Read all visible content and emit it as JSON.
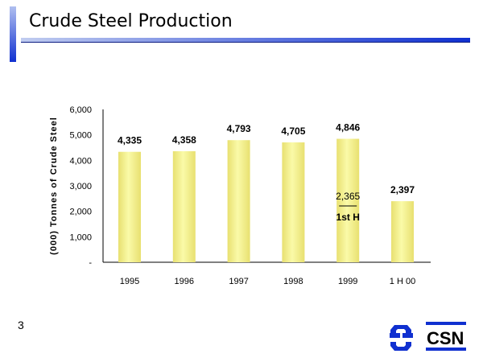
{
  "title": "Crude Steel Production",
  "page_number": "3",
  "logo_text": "CSN",
  "colors": {
    "bar": "#f0f08a",
    "accent": "#1030d0"
  },
  "chart_data": {
    "type": "bar",
    "title": "Crude Steel Production",
    "xlabel": "",
    "ylabel": "(000) Tonnes of Crude Steel",
    "ylim": [
      0,
      6000
    ],
    "yticks": [
      "-",
      "1,000",
      "2,000",
      "3,000",
      "4,000",
      "5,000",
      "6,000"
    ],
    "categories": [
      "1995",
      "1996",
      "1997",
      "1998",
      "1999",
      "1 H 00"
    ],
    "values": [
      4335,
      4358,
      4793,
      4705,
      4846,
      2397
    ],
    "data_labels": [
      "4,335",
      "4,358",
      "4,793",
      "4,705",
      "4,846",
      "2,397"
    ],
    "annotation": {
      "category": "1999",
      "value_label": "2,365",
      "label": "1st H"
    },
    "grid": false
  }
}
